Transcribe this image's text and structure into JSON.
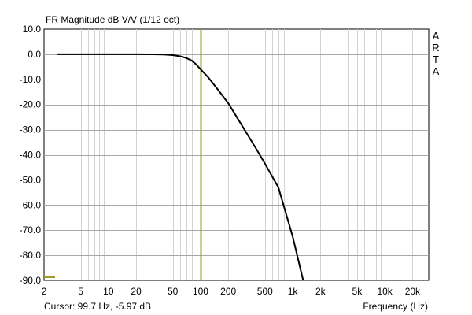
{
  "chart_data": {
    "type": "line",
    "title": "FR Magnitude dB V/V (1/12 oct)",
    "xlabel": "Frequency (Hz)",
    "ylabel": "",
    "x_scale": "log",
    "xlim": [
      2,
      30000
    ],
    "ylim": [
      -90,
      10
    ],
    "grid": true,
    "y_ticks": [
      10,
      0,
      -10,
      -20,
      -30,
      -40,
      -50,
      -60,
      -70,
      -80,
      -90
    ],
    "y_tick_labels": [
      "10.0",
      "0.0",
      "-10.0",
      "-20.0",
      "-30.0",
      "-40.0",
      "-50.0",
      "-60.0",
      "-70.0",
      "-80.0",
      "-90.0"
    ],
    "x_ticks": [
      2,
      5,
      10,
      20,
      50,
      100,
      200,
      500,
      1000,
      2000,
      5000,
      10000,
      20000
    ],
    "x_tick_labels": [
      "2",
      "5",
      "10",
      "20",
      "50",
      "100",
      "200",
      "500",
      "1k",
      "2k",
      "5k",
      "10k",
      "20k"
    ],
    "series": [
      {
        "color": "#000000",
        "x": [
          2.8,
          5,
          10,
          20,
          30,
          40,
          50,
          60,
          70,
          80,
          90,
          100,
          120,
          150,
          200,
          300,
          400,
          500,
          700,
          1000,
          1300
        ],
        "y": [
          0.0,
          0.0,
          0.0,
          0.0,
          -0.02,
          -0.1,
          -0.35,
          -0.8,
          -1.5,
          -2.5,
          -4.1,
          -6.0,
          -9.0,
          -13.5,
          -19.5,
          -30.0,
          -37.5,
          -43.5,
          -53.0,
          -72.5,
          -90.0
        ]
      }
    ],
    "cursor_x": 99.7,
    "cursor_color": "#a09a2e"
  },
  "cursor_readout": "Cursor: 99.7 Hz, -5.97 dB",
  "vendor_letters": [
    "A",
    "R",
    "T",
    "A"
  ]
}
